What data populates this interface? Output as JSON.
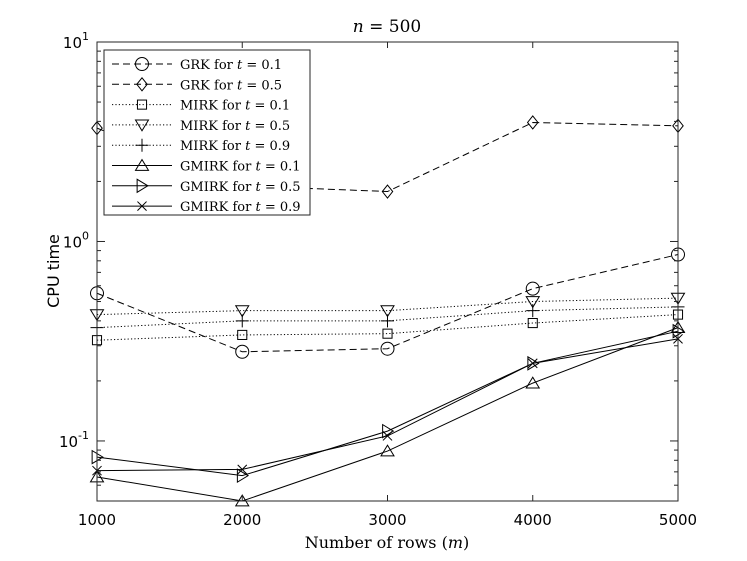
{
  "chart_data": {
    "type": "line",
    "title": "n = 500",
    "title_var": "n",
    "title_rest": " = 500",
    "xlabel": "Number of rows (m)",
    "xlabel_main": "Number of rows (",
    "xlabel_var": "m",
    "xlabel_end": ")",
    "ylabel": "CPU time",
    "x": [
      1000,
      2000,
      3000,
      4000,
      5000
    ],
    "xlim": [
      1000,
      5000
    ],
    "ylim": [
      0.05,
      10
    ],
    "yscale": "log",
    "xticks": [
      "1000",
      "2000",
      "3000",
      "4000",
      "5000"
    ],
    "yticks": [
      {
        "base": "10",
        "exp": "-1"
      },
      {
        "base": "10",
        "exp": "0"
      },
      {
        "base": "10",
        "exp": "1"
      }
    ],
    "legend_position": "top-left",
    "series": [
      {
        "name": "GRK for t = 0.1",
        "label": "GRK for ",
        "var": "t",
        "val": " = 0.1",
        "marker": "circle",
        "line": "dashed",
        "values": [
          0.55,
          0.28,
          0.29,
          0.58,
          0.86
        ]
      },
      {
        "name": "GRK for t = 0.5",
        "label": "GRK for ",
        "var": "t",
        "val": " = 0.5",
        "marker": "diamond",
        "line": "dashed",
        "values": [
          3.7,
          1.9,
          1.78,
          3.95,
          3.8
        ]
      },
      {
        "name": "MIRK for t = 0.1",
        "label": "MIRK for ",
        "var": "t",
        "val": " = 0.1",
        "marker": "square",
        "line": "dotted",
        "values": [
          0.32,
          0.34,
          0.345,
          0.39,
          0.43
        ]
      },
      {
        "name": "MIRK for t = 0.5",
        "label": "MIRK for ",
        "var": "t",
        "val": " = 0.5",
        "marker": "triangle-down",
        "line": "dotted",
        "values": [
          0.43,
          0.45,
          0.45,
          0.5,
          0.52
        ]
      },
      {
        "name": "MIRK for t = 0.9",
        "label": "MIRK for ",
        "var": "t",
        "val": " = 0.9",
        "marker": "plus",
        "line": "dotted",
        "values": [
          0.37,
          0.4,
          0.4,
          0.45,
          0.47
        ]
      },
      {
        "name": "GMIRK for t = 0.1",
        "label": "GMIRK for ",
        "var": "t",
        "val": " = 0.1",
        "marker": "triangle-up",
        "line": "solid",
        "values": [
          0.066,
          0.05,
          0.089,
          0.195,
          0.37
        ]
      },
      {
        "name": "GMIRK for t = 0.5",
        "label": "GMIRK for ",
        "var": "t",
        "val": " = 0.5",
        "marker": "triangle-right",
        "line": "solid",
        "values": [
          0.083,
          0.067,
          0.112,
          0.245,
          0.355
        ]
      },
      {
        "name": "GMIRK for t = 0.9",
        "label": "GMIRK for ",
        "var": "t",
        "val": " = 0.9",
        "marker": "x",
        "line": "solid",
        "values": [
          0.071,
          0.072,
          0.106,
          0.245,
          0.325
        ]
      }
    ]
  }
}
